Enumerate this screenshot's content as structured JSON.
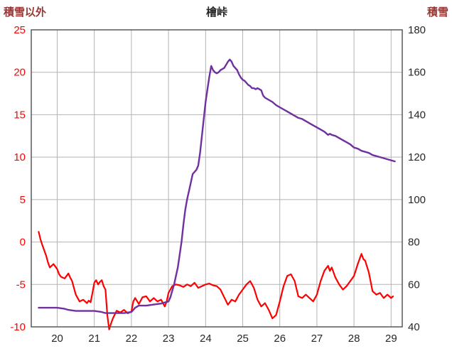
{
  "chart_data": {
    "type": "line",
    "title": "檜峠",
    "x_axis": {
      "min": 19.3,
      "max": 29.3,
      "ticks": [
        20,
        21,
        22,
        23,
        24,
        25,
        26,
        27,
        28,
        29
      ],
      "tick_color": "#262626"
    },
    "left_axis": {
      "label": "積雪以外",
      "min": -10,
      "max": 25,
      "ticks": [
        25,
        20,
        15,
        10,
        5,
        0,
        -5,
        -10
      ],
      "tick_color": "#ff0000",
      "title_color": "#953735"
    },
    "right_axis": {
      "label": "積雪",
      "min": 40,
      "max": 180,
      "ticks": [
        180,
        160,
        140,
        120,
        100,
        80,
        60,
        40
      ],
      "tick_color": "#262626",
      "title_color": "#953735"
    },
    "grid": {
      "on": true,
      "color": "#b3b3b3",
      "border_color": "#595959"
    },
    "legend": "none",
    "series": [
      {
        "name": "積雪以外",
        "axis": "left",
        "color": "#ff0000",
        "width": 2.2,
        "points": [
          [
            19.5,
            1.2
          ],
          [
            19.55,
            0.3
          ],
          [
            19.6,
            -0.4
          ],
          [
            19.7,
            -1.6
          ],
          [
            19.75,
            -2.4
          ],
          [
            19.8,
            -3.0
          ],
          [
            19.9,
            -2.6
          ],
          [
            19.95,
            -2.9
          ],
          [
            20.0,
            -3.2
          ],
          [
            20.05,
            -3.8
          ],
          [
            20.1,
            -4.1
          ],
          [
            20.2,
            -4.3
          ],
          [
            20.3,
            -3.7
          ],
          [
            20.35,
            -4.2
          ],
          [
            20.4,
            -4.6
          ],
          [
            20.5,
            -6.2
          ],
          [
            20.55,
            -6.6
          ],
          [
            20.6,
            -7.0
          ],
          [
            20.7,
            -6.8
          ],
          [
            20.8,
            -7.2
          ],
          [
            20.85,
            -6.9
          ],
          [
            20.9,
            -7.1
          ],
          [
            20.95,
            -6.0
          ],
          [
            21.0,
            -4.8
          ],
          [
            21.05,
            -4.5
          ],
          [
            21.1,
            -5.0
          ],
          [
            21.15,
            -4.7
          ],
          [
            21.2,
            -4.5
          ],
          [
            21.25,
            -5.2
          ],
          [
            21.3,
            -5.6
          ],
          [
            21.35,
            -8.6
          ],
          [
            21.4,
            -10.3
          ],
          [
            21.45,
            -9.6
          ],
          [
            21.5,
            -9.0
          ],
          [
            21.6,
            -8.1
          ],
          [
            21.7,
            -8.3
          ],
          [
            21.8,
            -8.0
          ],
          [
            21.9,
            -8.4
          ],
          [
            22.0,
            -8.2
          ],
          [
            22.05,
            -7.0
          ],
          [
            22.1,
            -6.6
          ],
          [
            22.2,
            -7.3
          ],
          [
            22.25,
            -6.9
          ],
          [
            22.3,
            -6.5
          ],
          [
            22.4,
            -6.4
          ],
          [
            22.5,
            -7.0
          ],
          [
            22.6,
            -6.6
          ],
          [
            22.7,
            -7.0
          ],
          [
            22.8,
            -6.8
          ],
          [
            22.9,
            -7.6
          ],
          [
            22.95,
            -7.0
          ],
          [
            23.0,
            -6.0
          ],
          [
            23.1,
            -5.2
          ],
          [
            23.2,
            -5.0
          ],
          [
            23.3,
            -5.1
          ],
          [
            23.4,
            -5.3
          ],
          [
            23.5,
            -5.0
          ],
          [
            23.6,
            -5.2
          ],
          [
            23.7,
            -4.8
          ],
          [
            23.8,
            -5.4
          ],
          [
            23.9,
            -5.2
          ],
          [
            24.0,
            -5.0
          ],
          [
            24.1,
            -4.9
          ],
          [
            24.2,
            -5.1
          ],
          [
            24.3,
            -5.2
          ],
          [
            24.4,
            -5.6
          ],
          [
            24.5,
            -6.5
          ],
          [
            24.6,
            -7.4
          ],
          [
            24.7,
            -6.8
          ],
          [
            24.8,
            -7.0
          ],
          [
            24.9,
            -6.2
          ],
          [
            25.0,
            -5.6
          ],
          [
            25.1,
            -5.0
          ],
          [
            25.2,
            -4.6
          ],
          [
            25.3,
            -5.4
          ],
          [
            25.4,
            -6.8
          ],
          [
            25.5,
            -7.6
          ],
          [
            25.6,
            -7.2
          ],
          [
            25.7,
            -8.0
          ],
          [
            25.8,
            -9.0
          ],
          [
            25.9,
            -8.6
          ],
          [
            26.0,
            -7.0
          ],
          [
            26.1,
            -5.2
          ],
          [
            26.2,
            -4.0
          ],
          [
            26.3,
            -3.8
          ],
          [
            26.4,
            -4.6
          ],
          [
            26.5,
            -6.4
          ],
          [
            26.6,
            -6.6
          ],
          [
            26.7,
            -6.2
          ],
          [
            26.8,
            -6.6
          ],
          [
            26.9,
            -7.0
          ],
          [
            27.0,
            -6.2
          ],
          [
            27.1,
            -4.6
          ],
          [
            27.2,
            -3.4
          ],
          [
            27.3,
            -2.8
          ],
          [
            27.35,
            -3.4
          ],
          [
            27.4,
            -3.0
          ],
          [
            27.5,
            -4.2
          ],
          [
            27.6,
            -5.0
          ],
          [
            27.7,
            -5.6
          ],
          [
            27.8,
            -5.2
          ],
          [
            27.9,
            -4.6
          ],
          [
            28.0,
            -4.0
          ],
          [
            28.1,
            -2.6
          ],
          [
            28.2,
            -1.4
          ],
          [
            28.25,
            -2.0
          ],
          [
            28.3,
            -2.2
          ],
          [
            28.4,
            -3.6
          ],
          [
            28.5,
            -5.8
          ],
          [
            28.6,
            -6.2
          ],
          [
            28.7,
            -6.0
          ],
          [
            28.8,
            -6.6
          ],
          [
            28.9,
            -6.2
          ],
          [
            29.0,
            -6.6
          ],
          [
            29.05,
            -6.4
          ]
        ]
      },
      {
        "name": "積雪",
        "axis": "right",
        "color": "#7030a0",
        "width": 2.4,
        "points": [
          [
            19.5,
            49
          ],
          [
            19.8,
            49
          ],
          [
            20.0,
            49
          ],
          [
            20.2,
            48.5
          ],
          [
            20.3,
            48
          ],
          [
            20.5,
            47.5
          ],
          [
            20.8,
            47.5
          ],
          [
            21.0,
            47.5
          ],
          [
            21.2,
            47
          ],
          [
            21.3,
            46.5
          ],
          [
            21.5,
            46.5
          ],
          [
            21.8,
            46.5
          ],
          [
            22.0,
            47
          ],
          [
            22.05,
            48
          ],
          [
            22.1,
            49
          ],
          [
            22.2,
            50
          ],
          [
            22.4,
            50
          ],
          [
            22.6,
            50.5
          ],
          [
            22.8,
            51
          ],
          [
            23.0,
            52
          ],
          [
            23.05,
            54
          ],
          [
            23.1,
            57
          ],
          [
            23.15,
            60
          ],
          [
            23.2,
            64
          ],
          [
            23.25,
            68
          ],
          [
            23.3,
            74
          ],
          [
            23.35,
            80
          ],
          [
            23.4,
            88
          ],
          [
            23.45,
            95
          ],
          [
            23.5,
            100
          ],
          [
            23.55,
            104
          ],
          [
            23.6,
            108
          ],
          [
            23.65,
            112
          ],
          [
            23.7,
            113
          ],
          [
            23.75,
            114
          ],
          [
            23.8,
            116
          ],
          [
            23.85,
            122
          ],
          [
            23.9,
            130
          ],
          [
            23.95,
            138
          ],
          [
            24.0,
            146
          ],
          [
            24.05,
            152
          ],
          [
            24.1,
            158
          ],
          [
            24.15,
            163
          ],
          [
            24.2,
            161
          ],
          [
            24.25,
            160
          ],
          [
            24.3,
            159.5
          ],
          [
            24.35,
            160
          ],
          [
            24.4,
            161
          ],
          [
            24.45,
            161.5
          ],
          [
            24.5,
            162
          ],
          [
            24.55,
            163.5
          ],
          [
            24.6,
            165
          ],
          [
            24.65,
            166
          ],
          [
            24.7,
            165
          ],
          [
            24.75,
            163
          ],
          [
            24.8,
            162
          ],
          [
            24.85,
            161
          ],
          [
            24.9,
            159
          ],
          [
            24.95,
            157.5
          ],
          [
            25.0,
            156.5
          ],
          [
            25.05,
            156
          ],
          [
            25.1,
            155
          ],
          [
            25.15,
            154
          ],
          [
            25.2,
            153.5
          ],
          [
            25.25,
            152.5
          ],
          [
            25.3,
            152.5
          ],
          [
            25.35,
            152
          ],
          [
            25.4,
            152.5
          ],
          [
            25.45,
            152
          ],
          [
            25.5,
            151.5
          ],
          [
            25.55,
            149
          ],
          [
            25.6,
            148
          ],
          [
            25.7,
            147
          ],
          [
            25.8,
            146
          ],
          [
            25.9,
            144.5
          ],
          [
            26.0,
            143.5
          ],
          [
            26.1,
            142.5
          ],
          [
            26.2,
            141.5
          ],
          [
            26.3,
            140.5
          ],
          [
            26.4,
            139.5
          ],
          [
            26.5,
            138.5
          ],
          [
            26.6,
            138
          ],
          [
            26.7,
            137
          ],
          [
            26.8,
            136
          ],
          [
            26.9,
            135
          ],
          [
            27.0,
            134
          ],
          [
            27.1,
            133
          ],
          [
            27.2,
            132
          ],
          [
            27.3,
            130.5
          ],
          [
            27.35,
            131
          ],
          [
            27.4,
            130.5
          ],
          [
            27.5,
            130
          ],
          [
            27.6,
            129
          ],
          [
            27.7,
            128
          ],
          [
            27.8,
            127
          ],
          [
            27.9,
            126
          ],
          [
            28.0,
            124.5
          ],
          [
            28.1,
            124
          ],
          [
            28.2,
            123
          ],
          [
            28.3,
            122.5
          ],
          [
            28.4,
            122
          ],
          [
            28.5,
            121
          ],
          [
            28.6,
            120.5
          ],
          [
            28.7,
            120
          ],
          [
            28.8,
            119.5
          ],
          [
            28.9,
            119
          ],
          [
            29.0,
            118.5
          ],
          [
            29.1,
            118
          ]
        ]
      }
    ]
  }
}
